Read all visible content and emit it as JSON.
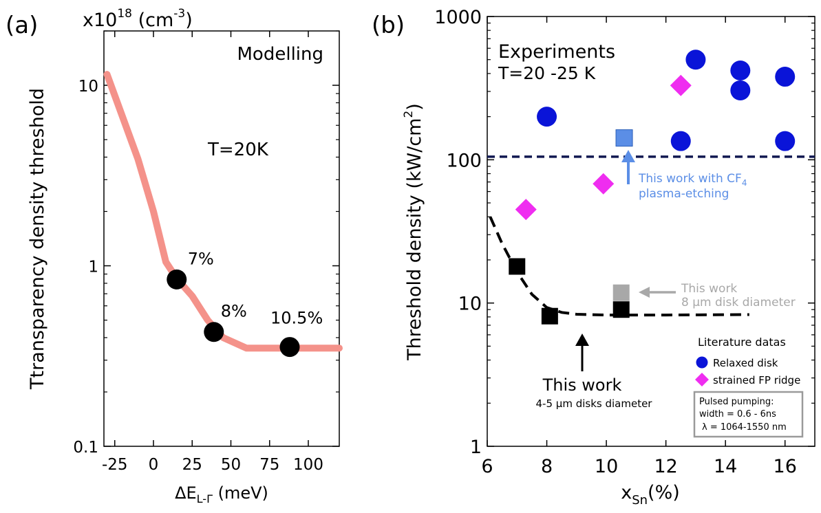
{
  "chart_data": [
    {
      "panel_label": "(a)",
      "type": "line",
      "title": "",
      "scale_note": "x10",
      "scale_exp": "18",
      "scale_unit_open": " (cm",
      "scale_unit_exp": "-3",
      "scale_unit_close": ")",
      "xlabel": {
        "prefix": "ΔE",
        "sub": "L-Γ",
        "suffix": " (meV)"
      },
      "ylabel": "Ttransparency density threshold",
      "xlim": [
        -32,
        120
      ],
      "ylim": [
        0.1,
        20
      ],
      "yscale": "log",
      "x_ticks": [
        -25,
        0,
        25,
        50,
        75,
        100
      ],
      "x_tick_labels": [
        "-25",
        "0",
        "25",
        "50",
        "75",
        "100"
      ],
      "y_ticks": [
        0.1,
        1,
        10
      ],
      "y_tick_labels": [
        "0.1",
        "1",
        "10"
      ],
      "annotations": {
        "modelling": "Modelling",
        "temperature": "T=20K"
      },
      "series": [
        {
          "kind": "curve",
          "color": "#f4928a",
          "x": [
            -30,
            -10,
            0,
            8,
            15,
            25,
            35,
            45,
            60,
            75,
            90,
            120
          ],
          "y": [
            11.5,
            3.9,
            2.0,
            1.05,
            0.85,
            0.68,
            0.5,
            0.4,
            0.35,
            0.35,
            0.35,
            0.35
          ]
        },
        {
          "kind": "points",
          "color": "#000000",
          "x": [
            15,
            39,
            88
          ],
          "y": [
            0.84,
            0.43,
            0.355
          ],
          "labels": [
            "7%",
            "8%",
            "10.5%"
          ]
        }
      ]
    },
    {
      "panel_label": "(b)",
      "type": "scatter",
      "title": "",
      "xlabel": {
        "prefix": "x",
        "sub": "Sn",
        "suffix": "(%)"
      },
      "ylabel": {
        "main": "Threshold density (kW/cm",
        "sup": "2",
        "close": ")"
      },
      "xlim": [
        6,
        17
      ],
      "ylim": [
        1,
        1000
      ],
      "yscale": "log",
      "x_ticks": [
        6,
        8,
        10,
        12,
        14,
        16
      ],
      "x_tick_labels": [
        "6",
        "8",
        "10",
        "12",
        "14",
        "16"
      ],
      "y_ticks": [
        1,
        10,
        100,
        1000
      ],
      "y_tick_labels": [
        "1",
        "10",
        "100",
        "1000"
      ],
      "annotations": {
        "experiments": "Experiments",
        "temperature": "T=20 -25 K",
        "cf4_line1": "This work with CF",
        "cf4_sub": "4",
        "cf4_line2": "plasma-etching",
        "disk8_line1": "This work",
        "disk8_line2": "8 µm disk diameter",
        "thiswork_main": "This work",
        "thiswork_sub": "4-5 µm disks diameter"
      },
      "legend_title": "Literature datas",
      "legend_placement": "bottom-right",
      "legend_entries": [
        {
          "label": "Relaxed disk",
          "color": "#0a14d8",
          "marker": "circle"
        },
        {
          "label": "strained FP ridge",
          "color": "#ef2df0",
          "marker": "diamond"
        }
      ],
      "pump_box": {
        "line1": "Pulsed pumping:",
        "line2": "width = 0.6 - 6ns",
        "line3": "λ = 1064-1550 nm"
      },
      "hline": {
        "y": 105,
        "color": "#101850"
      },
      "series": [
        {
          "name": "Relaxed disk",
          "kind": "circle",
          "color": "#0a14d8",
          "x": [
            8,
            12.5,
            13,
            14.5,
            14.5,
            16,
            16
          ],
          "y": [
            200,
            135,
            500,
            420,
            305,
            380,
            135
          ]
        },
        {
          "name": "strained FP ridge",
          "kind": "diamond",
          "color": "#ef2df0",
          "x": [
            7.3,
            9.9,
            12.5
          ],
          "y": [
            45,
            68,
            330
          ]
        },
        {
          "kind": "square",
          "color": "#000000",
          "x": [
            7,
            8.1,
            10.5
          ],
          "y": [
            18,
            8.1,
            9.0
          ]
        },
        {
          "kind": "square",
          "color": "#a8a8a8",
          "x": [
            10.5
          ],
          "y": [
            11.8
          ]
        },
        {
          "kind": "square",
          "color": "#5b8ee6",
          "x": [
            10.6
          ],
          "y": [
            142
          ]
        },
        {
          "kind": "dashed-curve",
          "color": "#000000",
          "x": [
            6.1,
            6.5,
            7.0,
            7.5,
            8.0,
            8.5,
            9.0,
            10.0,
            11.0,
            12.0,
            14.8
          ],
          "y": [
            40,
            26,
            16.5,
            11.5,
            9.3,
            8.6,
            8.35,
            8.25,
            8.25,
            8.25,
            8.3
          ]
        }
      ]
    }
  ]
}
